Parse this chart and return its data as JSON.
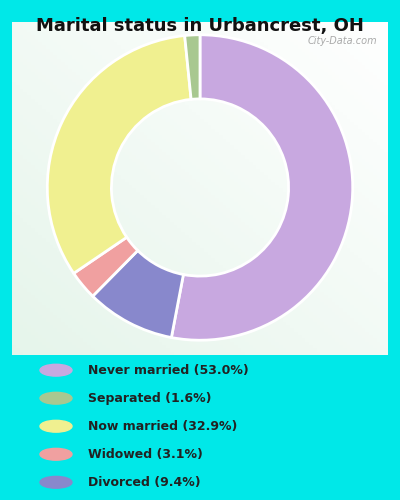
{
  "title": "Marital status in Urbancrest, OH",
  "title_fontsize": 13,
  "title_fontweight": "bold",
  "legend_labels": [
    "Never married (53.0%)",
    "Separated (1.6%)",
    "Now married (32.9%)",
    "Widowed (3.1%)",
    "Divorced (9.4%)"
  ],
  "legend_colors": [
    "#c8a8e0",
    "#a8c890",
    "#f0f090",
    "#f0a0a0",
    "#8888cc"
  ],
  "wedge_values": [
    53.0,
    1.6,
    32.9,
    3.1,
    9.4
  ],
  "wedge_colors": [
    "#c8a8e0",
    "#a8c890",
    "#f0f090",
    "#f0a0a0",
    "#8888cc"
  ],
  "wedge_order": [
    0,
    4,
    3,
    2,
    1
  ],
  "bg_cyan": "#00e8e8",
  "chart_bg_color": "#e8f5e8",
  "watermark": "City-Data.com",
  "figsize": [
    4.0,
    5.0
  ],
  "dpi": 100
}
